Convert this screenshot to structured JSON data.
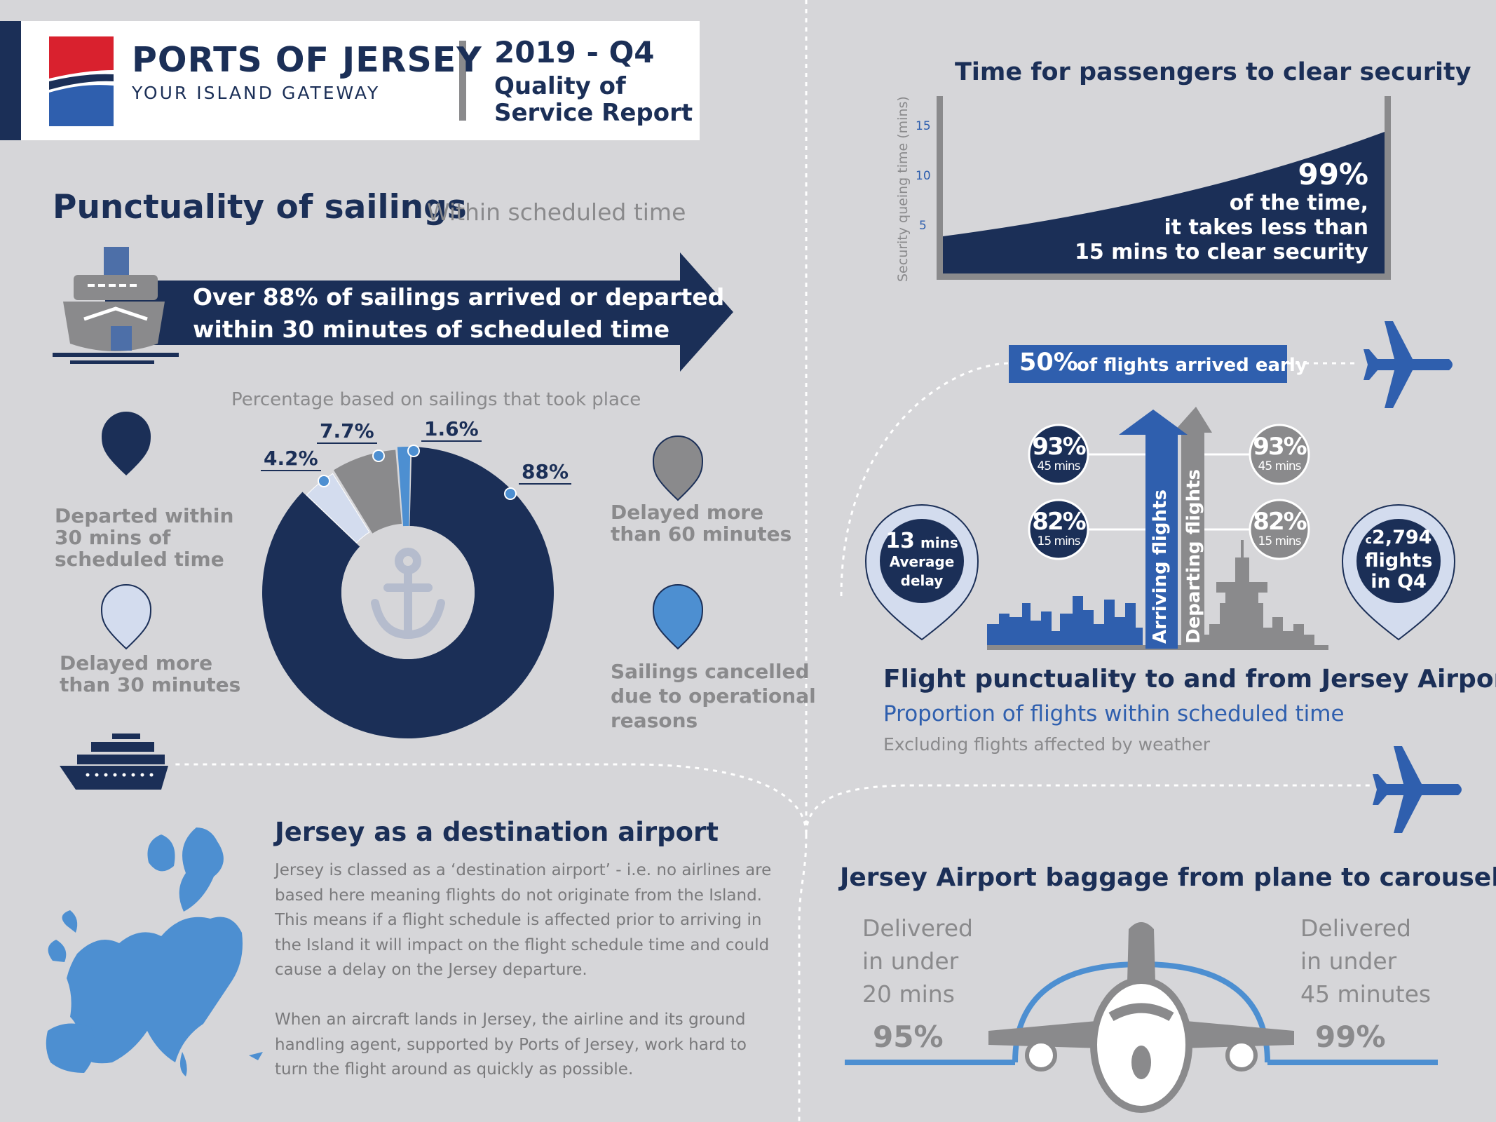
{
  "header": {
    "brand_title": "PORTS OF JERSEY",
    "brand_tagline": "YOUR ISLAND GATEWAY",
    "period": "2019 - Q4",
    "report_line1": "Quality of",
    "report_line2": "Service Report"
  },
  "sailings": {
    "title": "Punctuality of sailings",
    "subtitle": "Within scheduled time",
    "banner_line1": "Over 88% of sailings arrived or departed",
    "banner_line2": "within 30 minutes of scheduled time",
    "chart_caption": "Percentage based on sailings that took place",
    "legend": {
      "departed_l1": "Departed within",
      "departed_l2": "30 mins of",
      "departed_l3": "scheduled time",
      "delayed30_l1": "Delayed more",
      "delayed30_l2": "than 30 minutes",
      "delayed60_l1": "Delayed more",
      "delayed60_l2": "than 60 minutes",
      "cancelled_l1": "Sailings cancelled",
      "cancelled_l2": "due to operational",
      "cancelled_l3": "reasons"
    }
  },
  "chart_data": {
    "type": "pie",
    "categories": [
      "Departed within 30 mins of scheduled time",
      "Delayed more than 30 minutes",
      "Delayed more than 60 minutes",
      "Sailings cancelled due to operational reasons"
    ],
    "values": [
      88,
      4.2,
      7.7,
      1.6
    ],
    "labels": [
      "88%",
      "4.2%",
      "7.7%",
      "1.6%"
    ],
    "colors": [
      "#1b2f57",
      "#d3dcee",
      "#8a8a8c",
      "#4d8fd1"
    ],
    "title": "",
    "caption": "Percentage based on sailings that took place"
  },
  "security": {
    "title": "Time for passengers to clear security",
    "y_axis_label": "Security queing time (mins)",
    "ticks": [
      "15",
      "10",
      "5"
    ],
    "stat": "99%",
    "stat_line1": "of the time,",
    "stat_line2": "it takes less than",
    "stat_line3": "15 mins to clear security"
  },
  "flights": {
    "early_value": "50%",
    "early_text": "of flights arrived early",
    "arr_45_pct": "93%",
    "arr_45_lbl": "45 mins",
    "arr_15_pct": "82%",
    "arr_15_lbl": "15 mins",
    "dep_45_pct": "93%",
    "dep_45_lbl": "45 mins",
    "dep_15_pct": "82%",
    "dep_15_lbl": "15 mins",
    "arriving_label": "Arriving flights",
    "departing_label": "Departing flights",
    "delay_value": "13",
    "delay_unit": "mins",
    "delay_l2": "Average",
    "delay_l3": "delay",
    "count_prefix": "c",
    "count_value": "2,794",
    "count_l2": "flights",
    "count_l3": "in Q4",
    "title": "Flight punctuality to and from Jersey Airport",
    "subtitle": "Proportion of flights within scheduled time",
    "note": "Excluding flights affected by weather"
  },
  "destination": {
    "title": "Jersey as a destination airport",
    "para1": "Jersey is classed as a ‘destination airport’ - i.e. no airlines are based here meaning flights do not originate from the Island. This means if a flight schedule is affected prior to arriving in the Island it will impact on the flight schedule time and could cause a delay on the Jersey departure.",
    "para2": "When an aircraft lands in Jersey, the airline and its ground handling agent, supported by Ports of Jersey, work hard to turn the flight around as quickly as possible."
  },
  "baggage": {
    "title": "Jersey Airport baggage from plane to carousel",
    "left_l1": "Delivered",
    "left_l2": "in under",
    "left_l3": "20 mins",
    "left_pct": "95%",
    "right_l1": "Delivered",
    "right_l2": "in under",
    "right_l3": "45 minutes",
    "right_pct": "99%"
  },
  "colors": {
    "navy": "#1b2f57",
    "blue": "#2f5fae",
    "light_blue": "#4d8fd1",
    "grey": "#8a8a8c",
    "background": "#d6d6d9"
  }
}
